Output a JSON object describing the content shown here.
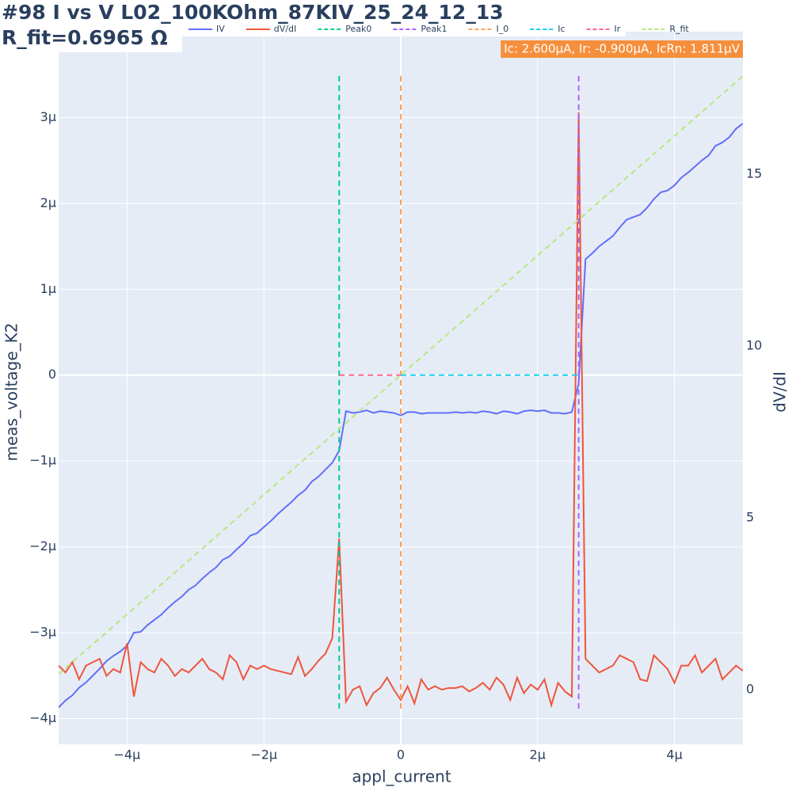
{
  "chart_data": {
    "type": "line",
    "title": "#98 I vs V L02_100KOhm_87KIV_25_24_12_13",
    "subtitle": "R_fit=0.6965 Ω",
    "xlabel": "appl_current",
    "ylabel": "meas_voltage_K2",
    "y2label": "dV/dI",
    "annotation": "Ic: 2.600μA, Ir: -0.900μA, IcRn: 1.811μV",
    "annotation_color": "#f68f3c",
    "legend_position": "top",
    "grid": true,
    "xlim": [
      -5e-06,
      5e-06
    ],
    "ylim": [
      -4.3e-06,
      4e-06
    ],
    "y2lim": [
      -1.59,
      19.15
    ],
    "xticks": [
      {
        "value": -4e-06,
        "label": "−4μ"
      },
      {
        "value": -2e-06,
        "label": "−2μ"
      },
      0,
      {
        "value": 2e-06,
        "label": "2μ"
      },
      {
        "value": 4e-06,
        "label": "4μ"
      }
    ],
    "yticks": [
      {
        "value": -4e-06,
        "label": "−4μ"
      },
      {
        "value": -3e-06,
        "label": "−3μ"
      },
      {
        "value": -2e-06,
        "label": "−2μ"
      },
      {
        "value": -1e-06,
        "label": "−1μ"
      },
      0,
      {
        "value": 1e-06,
        "label": "1μ"
      },
      {
        "value": 2e-06,
        "label": "2μ"
      },
      {
        "value": 3e-06,
        "label": "3μ"
      }
    ],
    "y2ticks": [
      0,
      5,
      10,
      15
    ],
    "x": [
      -5e-06,
      -4.9e-06,
      -4.8e-06,
      -4.7e-06,
      -4.6e-06,
      -4.5e-06,
      -4.4e-06,
      -4.3e-06,
      -4.2e-06,
      -4.1e-06,
      -4e-06,
      -3.9e-06,
      -3.8e-06,
      -3.7e-06,
      -3.6e-06,
      -3.5e-06,
      -3.4e-06,
      -3.3e-06,
      -3.2e-06,
      -3.1e-06,
      -3e-06,
      -2.9e-06,
      -2.8e-06,
      -2.7e-06,
      -2.6e-06,
      -2.5e-06,
      -2.4e-06,
      -2.3e-06,
      -2.2e-06,
      -2.1e-06,
      -2e-06,
      -1.9e-06,
      -1.8e-06,
      -1.7e-06,
      -1.6e-06,
      -1.5e-06,
      -1.4e-06,
      -1.3e-06,
      -1.2e-06,
      -1.1e-06,
      -1e-06,
      -9e-07,
      -8e-07,
      -7e-07,
      -6e-07,
      -5e-07,
      -4e-07,
      -3e-07,
      -2e-07,
      -1e-07,
      0,
      1e-07,
      2e-07,
      3e-07,
      4e-07,
      5e-07,
      6e-07,
      7e-07,
      8e-07,
      9e-07,
      1e-06,
      1.1e-06,
      1.2e-06,
      1.3e-06,
      1.4e-06,
      1.5e-06,
      1.6e-06,
      1.7e-06,
      1.8e-06,
      1.9e-06,
      2e-06,
      2.1e-06,
      2.2e-06,
      2.3e-06,
      2.4e-06,
      2.5e-06,
      2.6e-06,
      2.7e-06,
      2.8e-06,
      2.9e-06,
      3e-06,
      3.1e-06,
      3.2e-06,
      3.3e-06,
      3.4e-06,
      3.5e-06,
      3.6e-06,
      3.7e-06,
      3.8e-06,
      3.9e-06,
      4e-06,
      4.1e-06,
      4.2e-06,
      4.3e-06,
      4.4e-06,
      4.5e-06,
      4.6e-06,
      4.7e-06,
      4.8e-06,
      4.9e-06,
      5e-06
    ],
    "series": [
      {
        "name": "IV",
        "color": "#636efa",
        "dash": false,
        "values": [
          -3.87e-06,
          -3.79e-06,
          -3.73e-06,
          -3.64e-06,
          -3.58e-06,
          -3.5e-06,
          -3.42e-06,
          -3.33e-06,
          -3.27e-06,
          -3.22e-06,
          -3.15e-06,
          -3e-06,
          -2.99e-06,
          -2.91e-06,
          -2.85e-06,
          -2.79e-06,
          -2.71e-06,
          -2.64e-06,
          -2.58e-06,
          -2.5e-06,
          -2.45e-06,
          -2.37e-06,
          -2.3e-06,
          -2.24e-06,
          -2.15e-06,
          -2.11e-06,
          -2.03e-06,
          -1.96e-06,
          -1.87e-06,
          -1.84e-06,
          -1.77e-06,
          -1.7e-06,
          -1.62e-06,
          -1.55e-06,
          -1.48e-06,
          -1.4e-06,
          -1.34e-06,
          -1.24e-06,
          -1.18e-06,
          -1.1e-06,
          -1.02e-06,
          -8.8e-07,
          -4.2e-07,
          -4.4e-07,
          -4.3e-07,
          -4.1e-07,
          -4.4e-07,
          -4.2e-07,
          -4.3e-07,
          -4.4e-07,
          -4.7e-07,
          -4.3e-07,
          -4.3e-07,
          -4.5e-07,
          -4.4e-07,
          -4.4e-07,
          -4.4e-07,
          -4.4e-07,
          -4.3e-07,
          -4.4e-07,
          -4.3e-07,
          -4.4e-07,
          -4.2e-07,
          -4.3e-07,
          -4.5e-07,
          -4.2e-07,
          -4.3e-07,
          -4.5e-07,
          -4.2e-07,
          -4.1e-07,
          -4.2e-07,
          -4.1e-07,
          -4.4e-07,
          -4.4e-07,
          -4.5e-07,
          -4.3e-07,
          -1e-07,
          1.35e-06,
          1.42e-06,
          1.5e-06,
          1.56e-06,
          1.62e-06,
          1.72e-06,
          1.81e-06,
          1.84e-06,
          1.87e-06,
          1.95e-06,
          2.05e-06,
          2.13e-06,
          2.15e-06,
          2.21e-06,
          2.3e-06,
          2.36e-06,
          2.43e-06,
          2.5e-06,
          2.56e-06,
          2.67e-06,
          2.71e-06,
          2.77e-06,
          2.87e-06,
          2.93e-06
        ]
      },
      {
        "name": "dV/dI",
        "color": "#ef553b",
        "dash": false,
        "axis": "y2",
        "values": [
          0.7,
          0.5,
          0.8,
          0.3,
          0.7,
          0.8,
          0.9,
          0.4,
          0.6,
          0.5,
          1.35,
          -0.2,
          0.8,
          0.6,
          0.5,
          0.9,
          0.7,
          0.4,
          0.6,
          0.5,
          0.7,
          0.9,
          0.6,
          0.5,
          0.3,
          1.0,
          0.8,
          0.3,
          0.7,
          0.6,
          0.7,
          0.6,
          0.55,
          0.5,
          0.45,
          0.95,
          0.4,
          0.6,
          0.85,
          1.05,
          1.5,
          4.4,
          -0.35,
          0.0,
          0.1,
          -0.45,
          -0.1,
          0.05,
          0.35,
          0.0,
          -0.3,
          0.1,
          -0.4,
          0.3,
          0.0,
          0.1,
          0.0,
          0.05,
          0.05,
          0.1,
          -0.05,
          0.05,
          0.2,
          0.0,
          0.35,
          0.15,
          -0.3,
          0.35,
          -0.1,
          0.15,
          0.0,
          0.3,
          -0.45,
          0.2,
          -0.05,
          -0.2,
          16.8,
          0.9,
          0.7,
          0.5,
          0.6,
          0.7,
          1.0,
          0.9,
          0.8,
          0.3,
          0.25,
          1.0,
          0.8,
          0.6,
          0.2,
          0.7,
          0.7,
          1.0,
          0.5,
          0.7,
          0.9,
          0.3,
          0.5,
          0.7,
          0.55
        ]
      },
      {
        "name": "Peak0",
        "color": "#00cc96",
        "dash": true,
        "axis": "y2",
        "x": [
          -9e-07,
          -9e-07
        ],
        "values": [
          -0.55,
          17.88
        ]
      },
      {
        "name": "Peak1",
        "color": "#ab63fa",
        "dash": true,
        "axis": "y2",
        "x": [
          2.6e-06,
          2.6e-06
        ],
        "values": [
          -0.55,
          17.88
        ]
      },
      {
        "name": "I_0",
        "color": "#ffa15a",
        "dash": true,
        "axis": "y2",
        "x": [
          0,
          0
        ],
        "values": [
          -0.55,
          17.88
        ]
      },
      {
        "name": "Ic",
        "color": "#19d3f3",
        "dash": true,
        "x": [
          0,
          2.6e-06
        ],
        "values": [
          0,
          0
        ]
      },
      {
        "name": "Ir",
        "color": "#ff6692",
        "dash": true,
        "x": [
          -9e-07,
          0
        ],
        "values": [
          0,
          0
        ]
      },
      {
        "name": "R_fit",
        "color": "#b6e880",
        "dash": true,
        "x": [
          -5e-06,
          5e-06
        ],
        "values": [
          -3.4825e-06,
          3.4825e-06
        ]
      }
    ]
  }
}
